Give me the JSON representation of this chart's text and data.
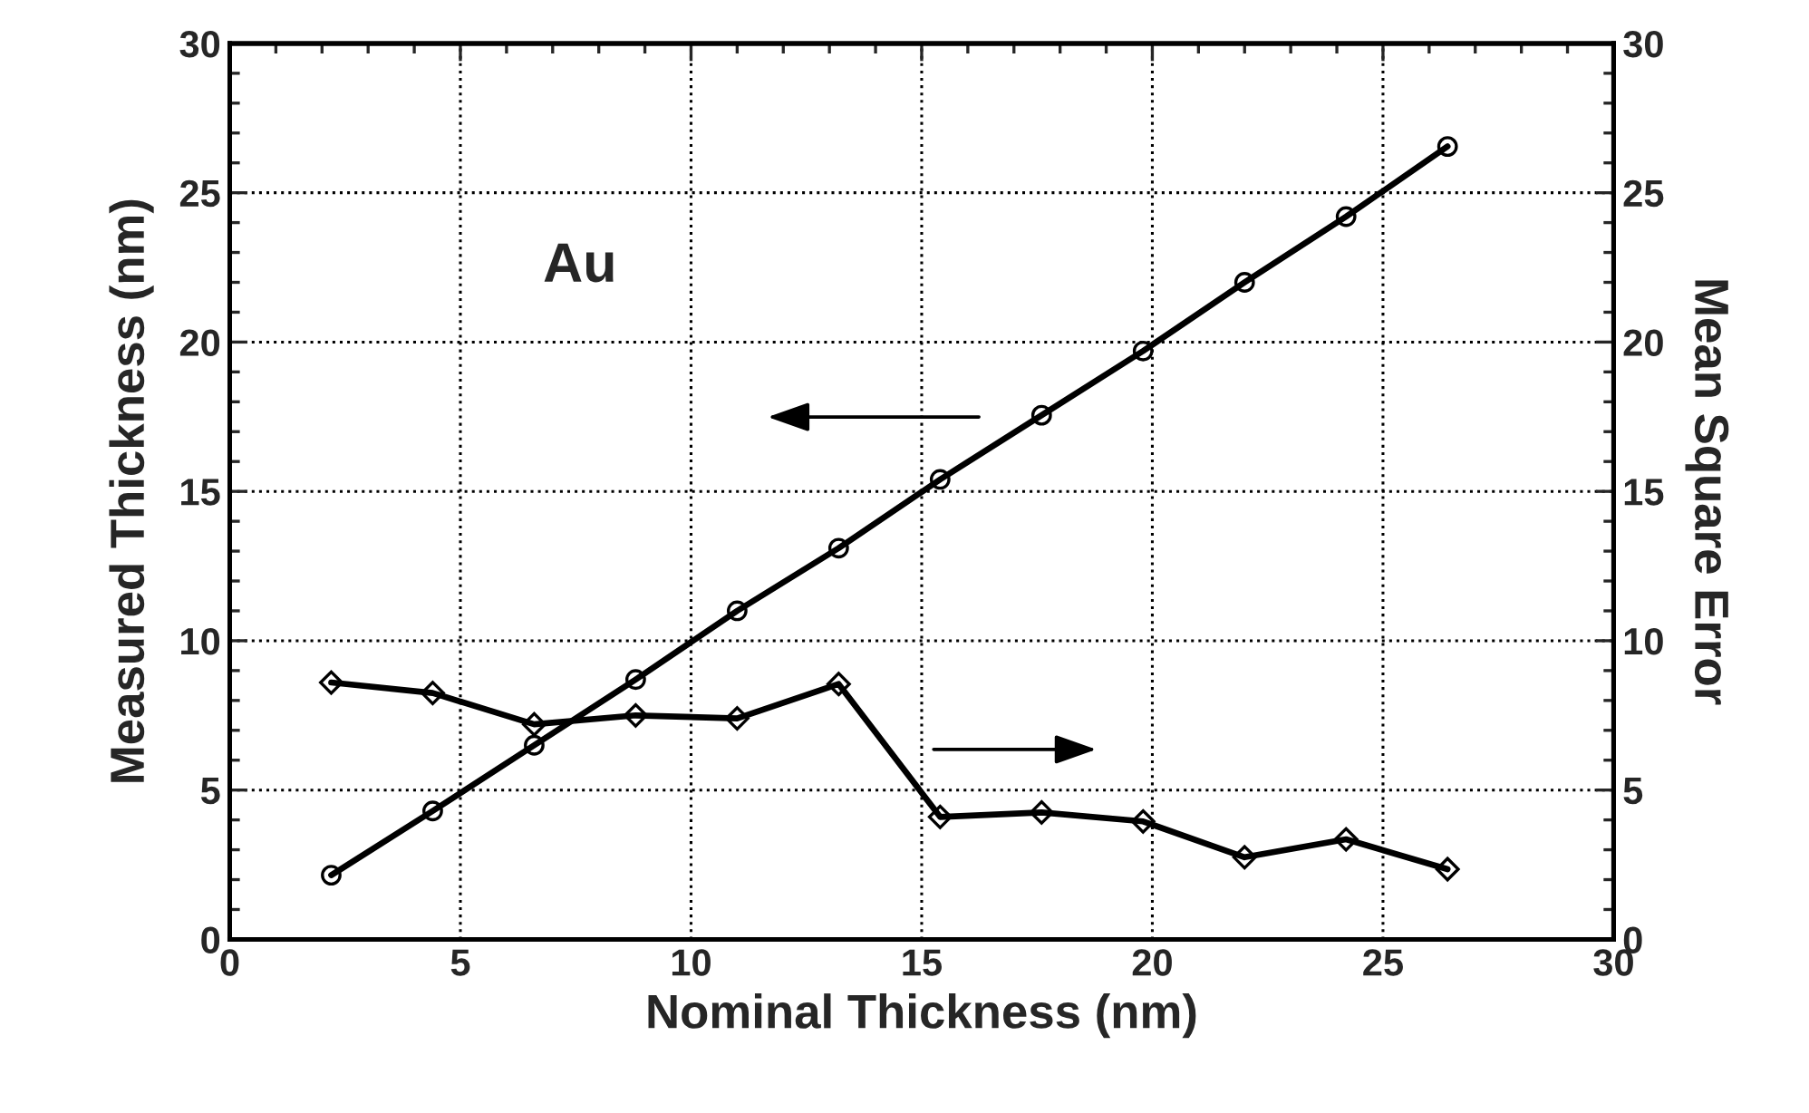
{
  "chart_data": {
    "type": "line",
    "xlabel": "Nominal Thickness (nm)",
    "ylabel": "Measured Thickness (nm)",
    "y2label": "Mean Square Error",
    "x": [
      2.2,
      4.4,
      6.6,
      8.8,
      11.0,
      13.2,
      15.4,
      17.6,
      19.8,
      22.0,
      24.2,
      26.4
    ],
    "series": [
      {
        "color": "#000000",
        "marker": "circle",
        "values": [
          2.15,
          4.3,
          6.5,
          8.7,
          11.0,
          13.1,
          15.4,
          17.55,
          19.7,
          22.0,
          24.2,
          26.55
        ]
      },
      {
        "color": "#000000",
        "marker": "diamond",
        "axis": "y2",
        "values": [
          8.6,
          8.25,
          7.2,
          7.5,
          7.4,
          8.55,
          4.1,
          4.25,
          3.95,
          2.75,
          3.35,
          2.35
        ]
      }
    ],
    "annotations": [
      "Au"
    ],
    "xlim": [
      0,
      30
    ],
    "xticks": [
      0,
      5,
      10,
      15,
      20,
      25,
      30
    ],
    "ylim": [
      0,
      30
    ],
    "yticks": [
      0,
      5,
      10,
      15,
      20,
      25,
      30
    ],
    "y2lim": [
      0,
      30
    ],
    "y2ticks": [
      0,
      5,
      10,
      15,
      20,
      25,
      30
    ],
    "grid": true,
    "line_style": "solid"
  }
}
